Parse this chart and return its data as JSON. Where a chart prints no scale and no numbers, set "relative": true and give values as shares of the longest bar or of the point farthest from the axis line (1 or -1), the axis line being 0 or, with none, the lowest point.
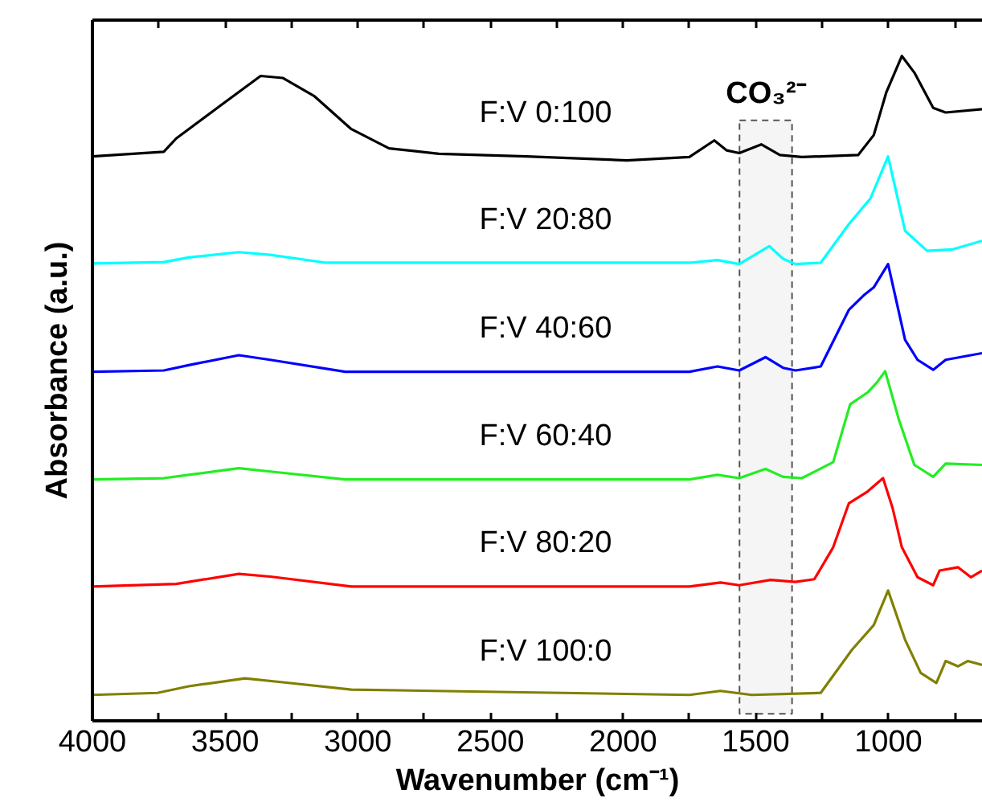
{
  "chart_data": {
    "type": "line",
    "relative": true,
    "xlabel": "Wavenumber (cm⁻¹)",
    "ylabel": "Absorbance (a.u.)",
    "xlim": [
      4000,
      644
    ],
    "xticks": [
      4000,
      {
        "value": 3750,
        "label": null
      },
      3500,
      {
        "value": 3250,
        "label": null
      },
      3000,
      {
        "value": 2750,
        "label": null
      },
      2500,
      {
        "value": 2250,
        "label": null
      },
      2000,
      {
        "value": 1750,
        "label": null
      },
      1500,
      {
        "value": 1250,
        "label": null
      },
      1000,
      {
        "value": 750,
        "label": null
      }
    ],
    "tick_labels": "x",
    "grid": false,
    "line_style": "solid",
    "bands": [
      {
        "axis": "x",
        "from": 1561,
        "to": 1363,
        "label": "CO₃²⁻",
        "color": "#555555"
      }
    ],
    "series": [
      {
        "name": "F:V 0:100",
        "color": "#000000",
        "x": [
          4000,
          3731,
          3684,
          3519,
          3366,
          3283,
          3165,
          3024,
          2882,
          2694,
          2364,
          1986,
          1750,
          1656,
          1609,
          1562,
          1479,
          1409,
          1326,
          1114,
          1055,
          1008,
          949,
          902,
          831,
          784,
          647
        ],
        "values": [
          0.849,
          0.856,
          0.876,
          0.925,
          0.97,
          0.967,
          0.94,
          0.89,
          0.861,
          0.853,
          0.849,
          0.843,
          0.848,
          0.873,
          0.858,
          0.854,
          0.867,
          0.851,
          0.848,
          0.851,
          0.881,
          0.945,
          1.0,
          0.975,
          0.922,
          0.915,
          0.92
        ]
      },
      {
        "name": "F:V 20:80",
        "color": "#00ffff",
        "x": [
          4000,
          3731,
          3637,
          3448,
          3330,
          3118,
          1750,
          1644,
          1562,
          1449,
          1397,
          1350,
          1255,
          1149,
          1067,
          1001,
          937,
          854,
          760,
          647
        ],
        "values": [
          0.688,
          0.69,
          0.697,
          0.705,
          0.701,
          0.689,
          0.689,
          0.693,
          0.687,
          0.714,
          0.695,
          0.687,
          0.689,
          0.747,
          0.786,
          0.849,
          0.737,
          0.707,
          0.709,
          0.722
        ]
      },
      {
        "name": "F:V 40:60",
        "color": "#0000ff",
        "x": [
          4000,
          3731,
          3637,
          3448,
          3330,
          3047,
          1750,
          1644,
          1562,
          1463,
          1397,
          1350,
          1255,
          1149,
          1090,
          1055,
          1001,
          937,
          890,
          831,
          784,
          647
        ],
        "values": [
          0.525,
          0.527,
          0.535,
          0.55,
          0.543,
          0.525,
          0.525,
          0.533,
          0.527,
          0.547,
          0.531,
          0.527,
          0.533,
          0.618,
          0.641,
          0.652,
          0.687,
          0.573,
          0.543,
          0.528,
          0.543,
          0.553
        ]
      },
      {
        "name": "F:V 60:40",
        "color": "#22ee22",
        "x": [
          4000,
          3731,
          3637,
          3448,
          3330,
          3047,
          1750,
          1644,
          1562,
          1463,
          1397,
          1326,
          1208,
          1144,
          1078,
          1043,
          1012,
          961,
          902,
          831,
          784,
          647
        ],
        "values": [
          0.363,
          0.365,
          0.37,
          0.38,
          0.375,
          0.363,
          0.363,
          0.37,
          0.365,
          0.379,
          0.367,
          0.365,
          0.389,
          0.476,
          0.494,
          0.509,
          0.526,
          0.454,
          0.385,
          0.367,
          0.387,
          0.385
        ]
      },
      {
        "name": "F:V 80:20",
        "color": "#ff0000",
        "x": [
          4000,
          3684,
          3448,
          3330,
          3024,
          1750,
          1632,
          1562,
          1444,
          1350,
          1279,
          1208,
          1149,
          1078,
          1020,
          984,
          949,
          890,
          831,
          807,
          737,
          689,
          647
        ],
        "values": [
          0.202,
          0.206,
          0.221,
          0.217,
          0.202,
          0.202,
          0.208,
          0.204,
          0.212,
          0.209,
          0.213,
          0.261,
          0.327,
          0.345,
          0.365,
          0.32,
          0.261,
          0.216,
          0.204,
          0.226,
          0.231,
          0.216,
          0.226
        ]
      },
      {
        "name": "F:V 100:0",
        "color": "#808000",
        "x": [
          4000,
          3755,
          3637,
          3425,
          3283,
          3024,
          1750,
          1633,
          1515,
          1255,
          1137,
          1055,
          1001,
          937,
          878,
          819,
          784,
          737,
          701,
          647
        ],
        "values": [
          0.039,
          0.042,
          0.052,
          0.064,
          0.058,
          0.047,
          0.039,
          0.045,
          0.039,
          0.042,
          0.107,
          0.144,
          0.196,
          0.122,
          0.072,
          0.057,
          0.09,
          0.082,
          0.09,
          0.084
        ]
      }
    ]
  }
}
